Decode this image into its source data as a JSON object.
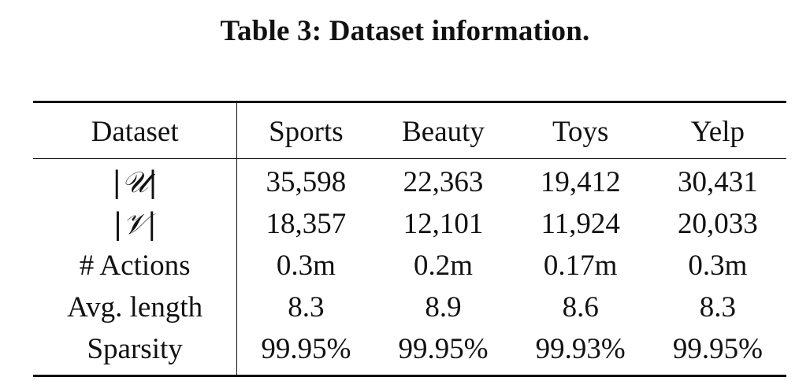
{
  "caption": "Table 3: Dataset information.",
  "table": {
    "header_label": "Dataset",
    "columns": [
      "Sports",
      "Beauty",
      "Toys",
      "Yelp"
    ],
    "rows": [
      {
        "label": "|𝒰|",
        "values": [
          "35,598",
          "22,363",
          "19,412",
          "30,431"
        ]
      },
      {
        "label": "|𝒱|",
        "values": [
          "18,357",
          "12,101",
          "11,924",
          "20,033"
        ]
      },
      {
        "label": "# Actions",
        "values": [
          "0.3m",
          "0.2m",
          "0.17m",
          "0.3m"
        ]
      },
      {
        "label": "Avg. length",
        "values": [
          "8.3",
          "8.9",
          "8.6",
          "8.3"
        ]
      },
      {
        "label": "Sparsity",
        "values": [
          "99.95%",
          "99.95%",
          "99.93%",
          "99.95%"
        ]
      }
    ]
  }
}
